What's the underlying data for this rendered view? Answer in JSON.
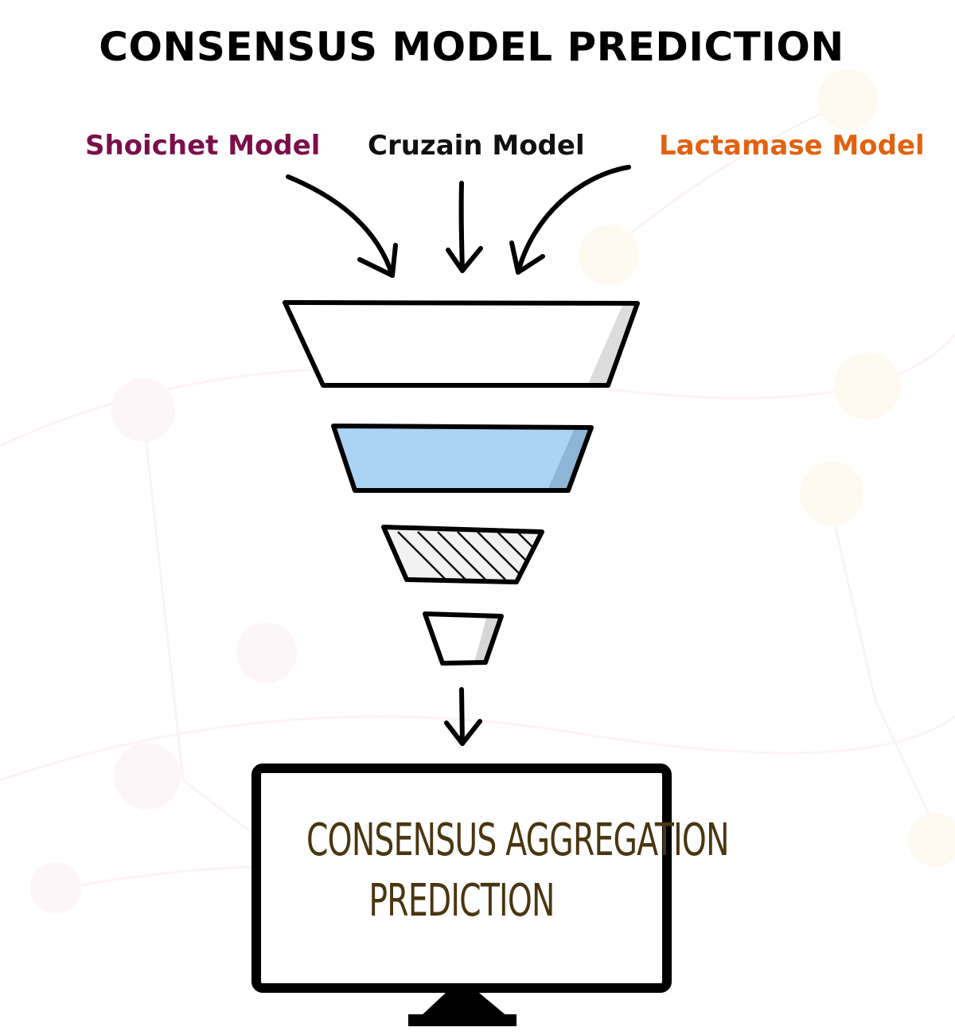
{
  "title": "CONSENSUS MODEL PREDICTION",
  "inputs": [
    {
      "label": "Shoichet Model",
      "color": "#7a0f4a"
    },
    {
      "label": "Cruzain Model",
      "color": "#111111"
    },
    {
      "label": "Lactamase Model",
      "color": "#e2620f"
    }
  ],
  "funnel_fills": [
    "#ffffff",
    "#abd3f3",
    "hatched",
    "#ffffff"
  ],
  "output": {
    "line1": "CONSENSUS AGGREGATION",
    "line2": "PREDICTION",
    "color": "#4a3610"
  }
}
